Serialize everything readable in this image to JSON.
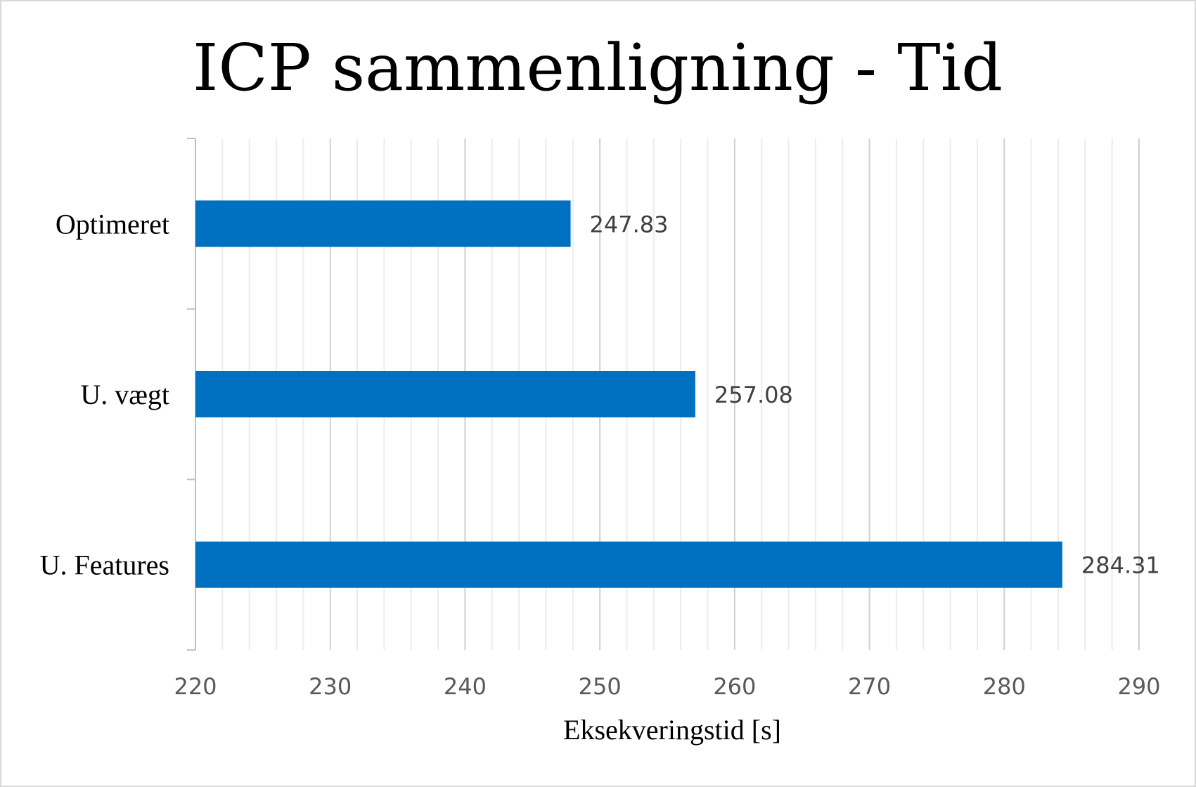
{
  "chart_data": {
    "type": "bar",
    "orientation": "horizontal",
    "title": "ICP sammenligning - Tid",
    "xlabel": "Eksekveringstid [s]",
    "ylabel": "",
    "categories": [
      "Optimeret",
      "U. vægt",
      "U. Features"
    ],
    "values": [
      247.83,
      257.08,
      284.31
    ],
    "data_labels": [
      "247.83",
      "257.08",
      "284.31"
    ],
    "xlim": [
      220,
      290
    ],
    "x_ticks": [
      "220",
      "230",
      "240",
      "250",
      "260",
      "270",
      "280",
      "290"
    ],
    "grid": true,
    "legend": "none",
    "bar_color": "#0070C0"
  }
}
